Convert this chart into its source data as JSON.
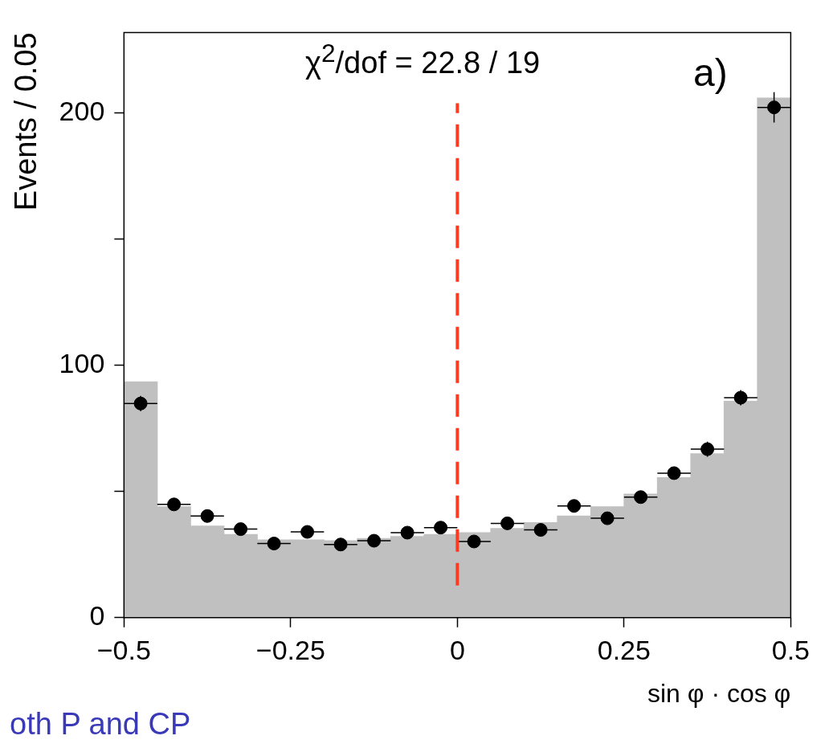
{
  "chart_data": {
    "type": "histogram",
    "xlabel": "sin φ · cos φ",
    "ylabel": "Events / 0.05",
    "annotations": [
      "χ$^{2}$/dof = 22.8 / 19",
      "a)",
      "oth P and CP"
    ],
    "bins": [
      -0.5,
      -0.45,
      -0.4,
      -0.35,
      -0.3,
      -0.25,
      -0.2,
      -0.15,
      -0.1,
      -0.05,
      0,
      0.05,
      0.1,
      0.15,
      0.2,
      0.25,
      0.3,
      0.35,
      0.4,
      0.45,
      0.5
    ],
    "series": [
      {
        "type": "histogram",
        "color": "#c0c0c0",
        "values": [
          93.5,
          44,
          36.3,
          33,
          30.8,
          30.8,
          30.5,
          31.4,
          32.2,
          33,
          33.7,
          35.4,
          37.7,
          40.3,
          44,
          49,
          55.5,
          65,
          85.8,
          206
        ]
      },
      {
        "type": "scatter",
        "color": "#000000",
        "x": [
          -0.475,
          -0.425,
          -0.375,
          -0.325,
          -0.275,
          -0.225,
          -0.175,
          -0.125,
          -0.075,
          -0.025,
          0.025,
          0.075,
          0.125,
          0.175,
          0.225,
          0.275,
          0.325,
          0.375,
          0.425,
          0.475
        ],
        "values": [
          84.9,
          44.9,
          40.3,
          35.1,
          29.4,
          34,
          29,
          30.5,
          33.7,
          35.7,
          30.2,
          37.4,
          34.8,
          44.3,
          39.4,
          47.8,
          57.3,
          66.8,
          87.2,
          202.3
        ],
        "errors": [
          3,
          2,
          2,
          2,
          2,
          2,
          2,
          2,
          2,
          2,
          2,
          2,
          2,
          2,
          2,
          2,
          2,
          3,
          3,
          6
        ],
        "xerrors": [
          0.025,
          0.025,
          0.025,
          0.025,
          0.025,
          0.025,
          0.025,
          0.025,
          0.025,
          0.025,
          0.025,
          0.025,
          0.025,
          0.025,
          0.025,
          0.025,
          0.025,
          0.025,
          0.025,
          0.025
        ],
        "marker": "circle"
      }
    ],
    "xlim": [
      -0.5,
      0.5
    ],
    "xticks": [
      {
        "value": -0.5,
        "label": "−0.5"
      },
      {
        "value": -0.25,
        "label": "−0.25"
      },
      0,
      0.25,
      0.5
    ],
    "ylim": [
      0,
      232
    ],
    "yticks": [
      0,
      {
        "value": 50,
        "label": null
      },
      100,
      {
        "value": 150,
        "label": null
      },
      200
    ],
    "ref_lines": [
      {
        "axis": "x",
        "value": 0,
        "color": "#ff3b1f",
        "line_style": "dashed"
      }
    ],
    "grid": false,
    "legend": false
  }
}
